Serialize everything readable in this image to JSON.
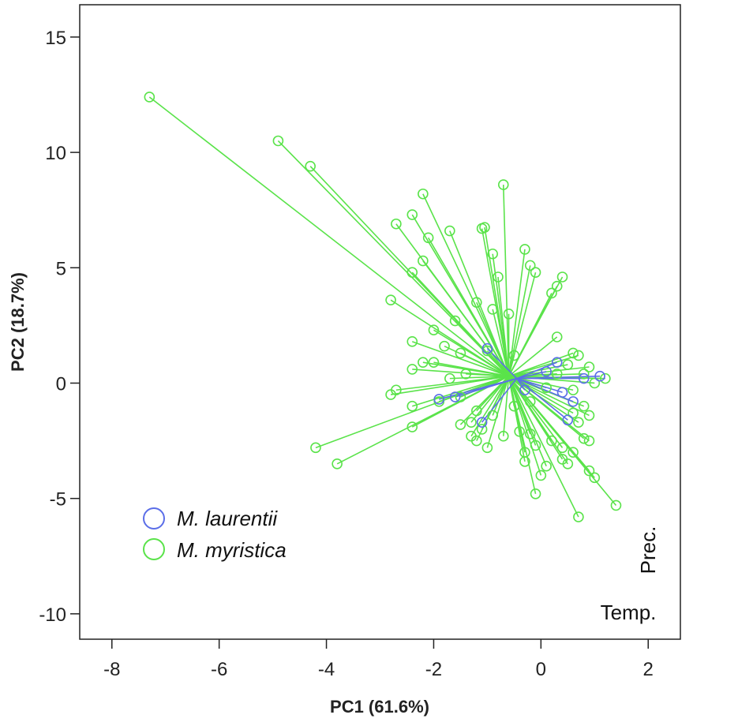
{
  "chart_data": {
    "type": "scatter",
    "title": "",
    "xlabel": "PC1 (61.6%)",
    "ylabel": "PC2 (18.7%)",
    "xlim": [
      -8.6,
      2.6
    ],
    "ylim": [
      -11.1,
      16.4
    ],
    "x_ticks": [
      -8,
      -6,
      -4,
      -2,
      0,
      2
    ],
    "y_ticks": [
      -10,
      -5,
      0,
      5,
      10,
      15
    ],
    "x_tick_labels": [
      "-8",
      "-6",
      "-4",
      "-2",
      "0",
      "2"
    ],
    "y_tick_labels": [
      "-10",
      "-5",
      "0",
      "5",
      "10",
      "15"
    ],
    "grid": false,
    "legend_position": "bottom-left",
    "style": "spider plot: each point joined by a line to its group centroid",
    "annotations": [
      "Prec.",
      "Temp."
    ],
    "series": [
      {
        "name": "M. laurentii",
        "color": "#5b6ee8",
        "centroid": [
          -0.45,
          0.2
        ],
        "points": [
          [
            -1.0,
            1.5
          ],
          [
            0.3,
            0.9
          ],
          [
            1.1,
            0.3
          ],
          [
            0.8,
            0.2
          ],
          [
            -1.9,
            -0.7
          ],
          [
            -1.6,
            -0.6
          ],
          [
            -1.1,
            -1.7
          ],
          [
            0.5,
            -1.6
          ],
          [
            0.6,
            -0.8
          ],
          [
            0.1,
            0.5
          ],
          [
            -0.3,
            -0.3
          ],
          [
            0.4,
            -0.4
          ]
        ]
      },
      {
        "name": "M. myristica",
        "color": "#5ae34a",
        "centroid": [
          -0.6,
          0.3
        ],
        "points": [
          [
            -7.3,
            12.4
          ],
          [
            -4.9,
            10.5
          ],
          [
            -4.3,
            9.4
          ],
          [
            -2.2,
            8.2
          ],
          [
            -0.7,
            8.6
          ],
          [
            -2.4,
            7.3
          ],
          [
            -2.7,
            6.9
          ],
          [
            -1.1,
            6.7
          ],
          [
            -1.05,
            6.75
          ],
          [
            -1.7,
            6.6
          ],
          [
            -2.1,
            6.3
          ],
          [
            -0.9,
            5.6
          ],
          [
            -2.2,
            5.3
          ],
          [
            -2.4,
            4.8
          ],
          [
            -0.3,
            5.8
          ],
          [
            -0.2,
            5.1
          ],
          [
            -0.1,
            4.8
          ],
          [
            -0.8,
            4.6
          ],
          [
            0.4,
            4.6
          ],
          [
            0.3,
            4.2
          ],
          [
            0.2,
            3.9
          ],
          [
            -2.8,
            3.6
          ],
          [
            -1.2,
            3.5
          ],
          [
            -0.9,
            3.2
          ],
          [
            -0.6,
            3.0
          ],
          [
            -1.6,
            2.7
          ],
          [
            -2.0,
            2.3
          ],
          [
            -1.8,
            1.6
          ],
          [
            -2.4,
            1.8
          ],
          [
            -1.5,
            1.3
          ],
          [
            -1.0,
            1.4
          ],
          [
            -0.5,
            1.2
          ],
          [
            0.3,
            2.0
          ],
          [
            -2.2,
            0.9
          ],
          [
            -2.4,
            0.6
          ],
          [
            -2.0,
            0.9
          ],
          [
            -2.7,
            -0.3
          ],
          [
            -2.8,
            -0.5
          ],
          [
            -1.4,
            0.4
          ],
          [
            -1.7,
            0.2
          ],
          [
            0.6,
            1.3
          ],
          [
            0.7,
            1.2
          ],
          [
            0.5,
            0.8
          ],
          [
            0.9,
            0.7
          ],
          [
            1.2,
            0.2
          ],
          [
            1.0,
            0.0
          ],
          [
            0.8,
            0.4
          ],
          [
            0.6,
            -0.3
          ],
          [
            0.3,
            0.4
          ],
          [
            0.1,
            -0.2
          ],
          [
            0.6,
            -1.3
          ],
          [
            0.8,
            -1.0
          ],
          [
            0.9,
            -1.4
          ],
          [
            -2.4,
            -1.0
          ],
          [
            -1.9,
            -0.8
          ],
          [
            -1.5,
            -0.6
          ],
          [
            -1.2,
            -1.2
          ],
          [
            -1.3,
            -1.7
          ],
          [
            -0.9,
            -1.4
          ],
          [
            -2.4,
            -1.9
          ],
          [
            -1.5,
            -1.8
          ],
          [
            -1.1,
            -2.0
          ],
          [
            -1.2,
            -2.5
          ],
          [
            -1.0,
            -2.8
          ],
          [
            -0.7,
            -2.3
          ],
          [
            -0.4,
            -2.1
          ],
          [
            -0.2,
            -2.2
          ],
          [
            -1.3,
            -2.3
          ],
          [
            -0.3,
            -3.0
          ],
          [
            -0.1,
            -2.7
          ],
          [
            0.2,
            -2.5
          ],
          [
            0.4,
            -2.8
          ],
          [
            0.4,
            -3.3
          ],
          [
            0.6,
            -3.0
          ],
          [
            0.8,
            -2.4
          ],
          [
            0.9,
            -2.5
          ],
          [
            0.1,
            -3.6
          ],
          [
            -0.3,
            -3.4
          ],
          [
            0.0,
            -4.0
          ],
          [
            -0.1,
            -4.8
          ],
          [
            0.9,
            -3.8
          ],
          [
            1.0,
            -4.1
          ],
          [
            1.4,
            -5.3
          ],
          [
            0.7,
            -5.8
          ],
          [
            -4.2,
            -2.8
          ],
          [
            -3.8,
            -3.5
          ],
          [
            0.5,
            -3.5
          ],
          [
            0.7,
            -1.7
          ],
          [
            -0.2,
            -0.8
          ],
          [
            -0.5,
            -1.0
          ]
        ]
      }
    ]
  }
}
